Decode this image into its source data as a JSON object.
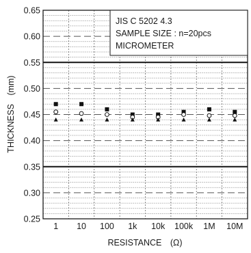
{
  "chart_data": {
    "type": "scatter",
    "title": "",
    "xlabel": "RESISTANCE　(Ω)",
    "ylabel": "THICKNESS　(mm)",
    "ylim": [
      0.25,
      0.65
    ],
    "y_ticks": [
      "0.25",
      "0.30",
      "0.35",
      "0.40",
      "0.45",
      "0.50",
      "0.55",
      "0.60",
      "0.65"
    ],
    "categories": [
      "1",
      "10",
      "100",
      "1k",
      "10k",
      "100k",
      "1M",
      "10M"
    ],
    "annotation": [
      "JIS C 5202 4.3",
      "SAMPLE SIZE : n=20pcs",
      "MICROMETER"
    ],
    "limit_lines": [
      0.35,
      0.55
    ],
    "grid": true,
    "series": [
      {
        "marker": "filled-square",
        "values": [
          0.47,
          0.47,
          0.46,
          0.45,
          0.45,
          0.455,
          0.46,
          0.455
        ]
      },
      {
        "marker": "open-circle",
        "values": [
          0.455,
          0.452,
          0.45,
          0.445,
          0.445,
          0.45,
          0.448,
          0.448
        ]
      },
      {
        "marker": "filled-triangle",
        "values": [
          0.44,
          0.44,
          0.44,
          0.44,
          0.44,
          0.44,
          0.44,
          0.44
        ]
      }
    ]
  }
}
